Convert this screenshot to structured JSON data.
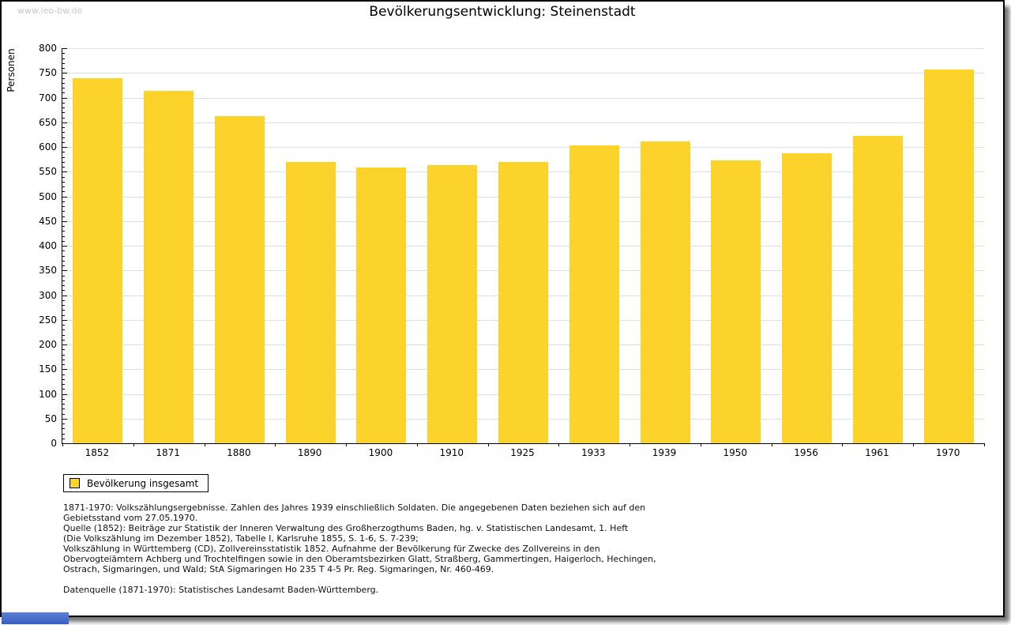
{
  "page": {
    "watermark": "www.leo-bw.de",
    "title": "Bevölkerungsentwicklung: Steinenstadt"
  },
  "chart_data": {
    "type": "bar",
    "title": "Bevölkerungsentwicklung: Steinenstadt",
    "ylabel": "Personen",
    "xlabel": "",
    "categories": [
      "1852",
      "1871",
      "1880",
      "1890",
      "1900",
      "1910",
      "1925",
      "1933",
      "1939",
      "1950",
      "1956",
      "1961",
      "1970"
    ],
    "series": [
      {
        "name": "Bevölkerung insgesamt",
        "values": [
          739,
          714,
          663,
          570,
          559,
          564,
          570,
          603,
          612,
          573,
          587,
          622,
          757
        ]
      }
    ],
    "ylim": [
      0,
      800
    ],
    "ytick_step": 50,
    "y_minor_tick_step": 10,
    "grid": "horizontal",
    "bar_color": "#FCD32B",
    "gridline_color": "#dedede",
    "legend_position": "below-chart-left"
  },
  "legend": {
    "items": [
      {
        "label": "Bevölkerung insgesamt",
        "color": "#FCD32B"
      }
    ]
  },
  "footer": {
    "note_lines": [
      "1871-1970: Volkszählungsergebnisse. Zahlen des Jahres 1939 einschließlich Soldaten. Die angegebenen Daten beziehen sich auf den",
      "Gebietsstand vom 27.05.1970.",
      "Quelle (1852): Beiträge zur Statistik der Inneren Verwaltung des Großherzogthums Baden, hg. v. Statistischen Landesamt, 1. Heft",
      "(Die Volkszählung im Dezember 1852), Tabelle I, Karlsruhe 1855, S. 1-6, S. 7-239;",
      "Volkszählung in Württemberg (CD), Zollvereinsstatistik 1852. Aufnahme der Bevölkerung für Zwecke des Zollvereins in den",
      "Obervogteiämtern Achberg und Trochtelfingen sowie in den Oberamtsbezirken Glatt, Straßberg, Gammertingen, Haigerloch, Hechingen,",
      "Ostrach, Sigmaringen, und Wald; StA Sigmaringen Ho 235 T 4-5 Pr. Reg. Sigmaringen, Nr. 460-469."
    ],
    "datasource": "Datenquelle (1871-1970): Statistisches Landesamt Baden-Württemberg."
  }
}
